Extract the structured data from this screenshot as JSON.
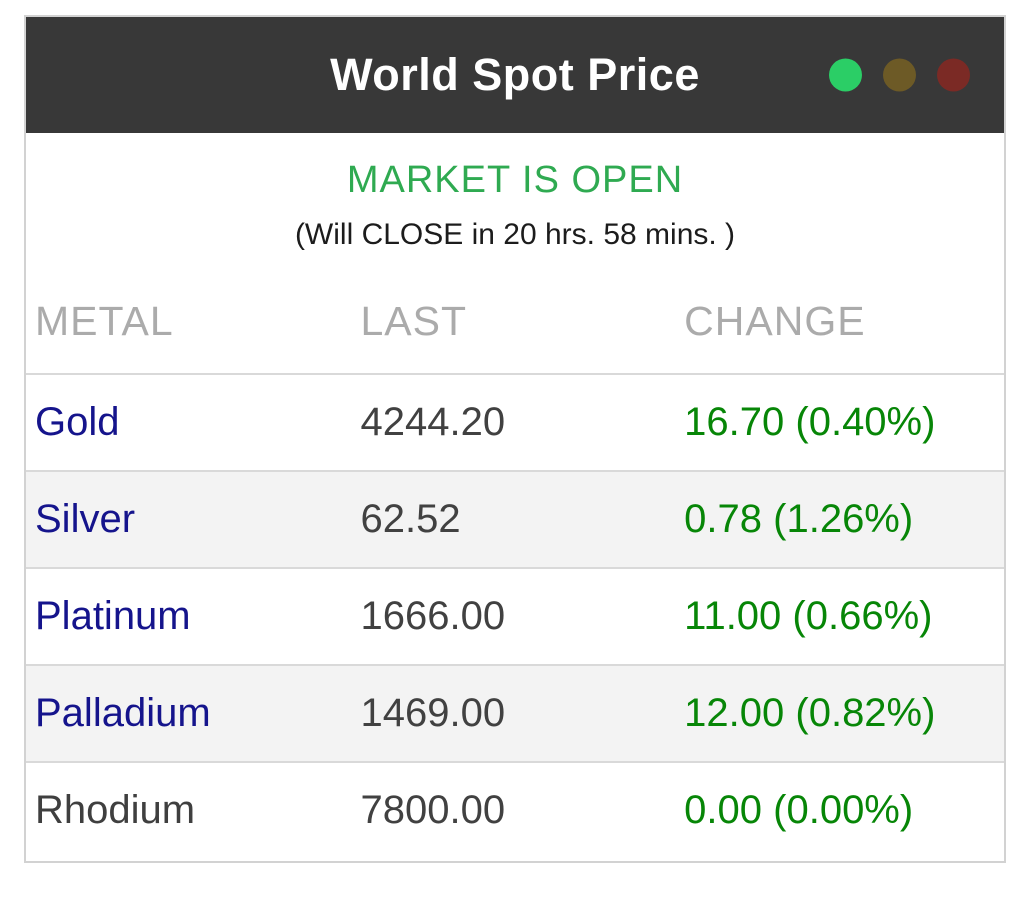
{
  "window": {
    "title": "World Spot Price",
    "traffic_lights": [
      {
        "name": "green-dot",
        "color": "#2bce66"
      },
      {
        "name": "yellow-dot",
        "color": "#6d5a26"
      },
      {
        "name": "red-dot",
        "color": "#7b2a25"
      }
    ]
  },
  "status": {
    "market_state": "MARKET IS OPEN",
    "close_countdown": "(Will CLOSE in 20 hrs. 58 mins. )"
  },
  "table": {
    "columns": [
      "METAL",
      "LAST",
      "CHANGE"
    ],
    "rows": [
      {
        "metal": "Gold",
        "last": "4244.20",
        "change": "16.70 (0.40%)",
        "is_link": true
      },
      {
        "metal": "Silver",
        "last": "62.52",
        "change": "0.78 (1.26%)",
        "is_link": true
      },
      {
        "metal": "Platinum",
        "last": "1666.00",
        "change": "11.00 (0.66%)",
        "is_link": true
      },
      {
        "metal": "Palladium",
        "last": "1469.00",
        "change": "12.00 (0.82%)",
        "is_link": true
      },
      {
        "metal": "Rhodium",
        "last": "7800.00",
        "change": "0.00 (0.00%)",
        "is_link": false
      }
    ]
  },
  "colors": {
    "header_bg": "#383838",
    "market_open_green": "#2faa51",
    "change_green": "#078607",
    "metal_link_navy": "#15148c",
    "stripe_gray": "#f3f3f3"
  }
}
